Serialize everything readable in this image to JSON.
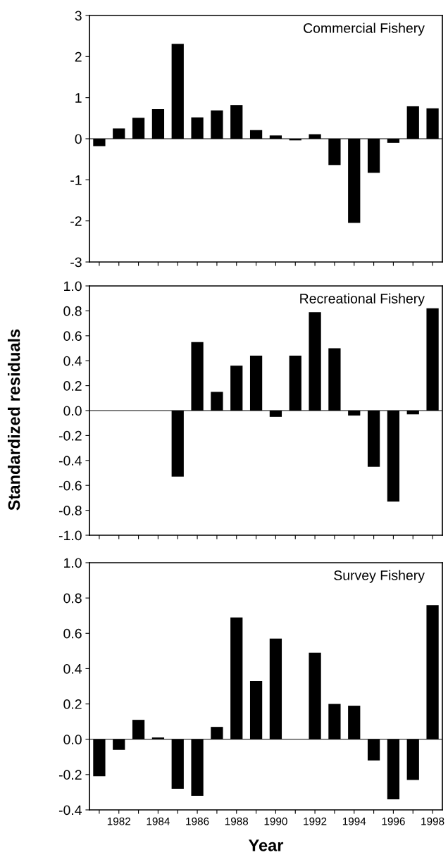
{
  "chart_data": [
    {
      "type": "bar",
      "title": "Commercial Fishery",
      "categories": [
        null,
        "1982",
        null,
        "1984",
        null,
        "1986",
        null,
        "1988",
        null,
        "1990",
        null,
        "1992",
        null,
        "1994",
        null,
        "1996",
        null,
        "1998"
      ],
      "values": [
        -0.18,
        0.25,
        0.51,
        0.72,
        2.31,
        0.52,
        0.69,
        0.82,
        0.21,
        0.08,
        -0.04,
        0.11,
        -0.64,
        -2.05,
        -0.83,
        -0.1,
        0.79,
        0.74
      ],
      "color": "#000000",
      "ylim": [
        -3,
        3
      ],
      "yticks": [
        -3,
        -2,
        -1,
        0,
        1,
        2,
        3
      ],
      "tick_labels": "y",
      "ref_lines": [
        {
          "axis": "y",
          "value": 0,
          "color": "#000000"
        }
      ]
    },
    {
      "type": "bar",
      "title": "Recreational Fishery",
      "ylabel": "Standardized residuals",
      "categories": [
        null,
        "1982",
        null,
        "1984",
        null,
        "1986",
        null,
        "1988",
        null,
        "1990",
        null,
        "1992",
        null,
        "1994",
        null,
        "1996",
        null,
        "1998"
      ],
      "values": [
        null,
        null,
        null,
        null,
        -0.53,
        0.55,
        0.15,
        0.36,
        0.44,
        -0.05,
        0.44,
        0.79,
        0.5,
        -0.04,
        -0.45,
        -0.73,
        -0.03,
        0.82
      ],
      "color": "#000000",
      "ylim": [
        -1.0,
        1.0
      ],
      "yticks": [
        {
          "value": -1,
          "label": "-1.0"
        },
        -0.8,
        -0.6,
        -0.4,
        -0.2,
        {
          "value": 0,
          "label": "0.0"
        },
        0.2,
        0.4,
        0.6,
        0.8,
        {
          "value": 1,
          "label": "1.0"
        }
      ],
      "tick_labels": "y",
      "ref_lines": [
        {
          "axis": "y",
          "value": 0,
          "color": "#000000"
        }
      ]
    },
    {
      "type": "bar",
      "title": "Survey Fishery",
      "xlabel": "Year",
      "categories": [
        null,
        "1982",
        null,
        "1984",
        null,
        "1986",
        null,
        "1988",
        null,
        "1990",
        null,
        "1992",
        null,
        "1994",
        null,
        "1996",
        null,
        "1998"
      ],
      "values": [
        -0.21,
        -0.06,
        0.11,
        0.01,
        -0.28,
        -0.32,
        0.07,
        0.69,
        0.33,
        0.57,
        null,
        0.49,
        0.2,
        0.19,
        -0.12,
        -0.34,
        -0.23,
        0.76
      ],
      "color": "#000000",
      "ylim": [
        -0.4,
        1.0
      ],
      "yticks": [
        -0.4,
        -0.2,
        {
          "value": 0,
          "label": "0.0"
        },
        0.2,
        0.4,
        0.6,
        0.8,
        {
          "value": 1,
          "label": "1.0"
        }
      ],
      "ref_lines": [
        {
          "axis": "y",
          "value": 0,
          "color": "#000000"
        }
      ]
    }
  ]
}
